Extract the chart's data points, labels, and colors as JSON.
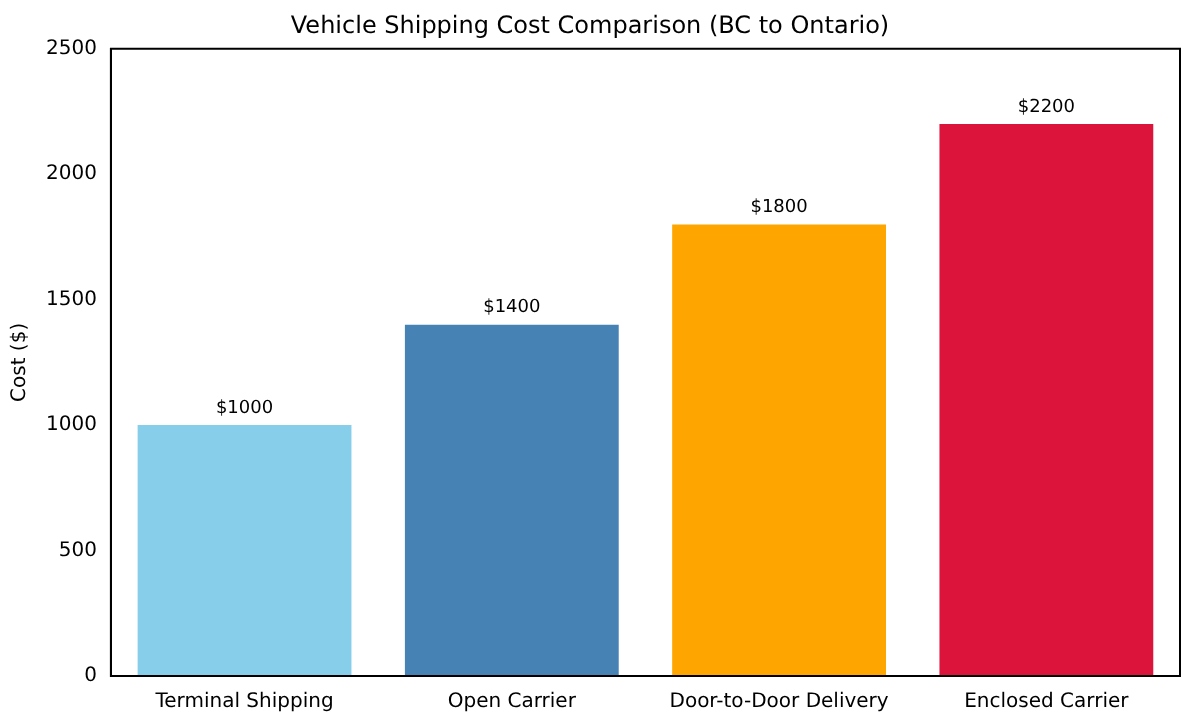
{
  "chart_data": {
    "type": "bar",
    "title": "Vehicle Shipping Cost Comparison (BC to Ontario)",
    "ylabel": "Cost ($)",
    "categories": [
      "Terminal Shipping",
      "Open Carrier",
      "Door-to-Door Delivery",
      "Enclosed Carrier"
    ],
    "values": [
      1000,
      1400,
      1800,
      2200
    ],
    "colors": [
      "#87ceeb",
      "#4682b4",
      "#ffa500",
      "#dc143c"
    ],
    "value_labels": [
      "$1000",
      "$1400",
      "$1800",
      "$2200"
    ],
    "ylim": [
      0,
      2500
    ],
    "yticks": [
      0,
      500,
      1000,
      1500,
      2000,
      2500
    ],
    "grid": false,
    "legend": false
  }
}
